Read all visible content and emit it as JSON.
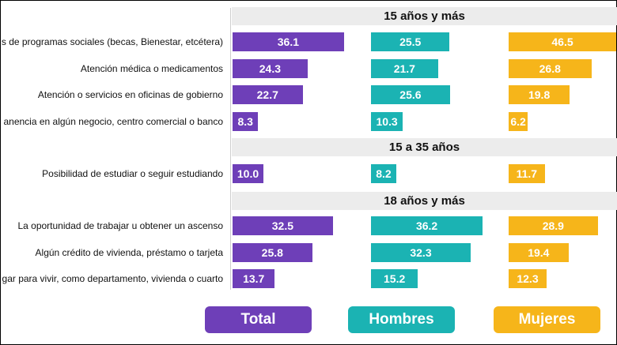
{
  "colors": {
    "total": "#6e3fb8",
    "hombres": "#1bb3b3",
    "mujeres": "#f6b51a"
  },
  "legend": {
    "total": "Total",
    "hombres": "Hombres",
    "mujeres": "Mujeres"
  },
  "chart_data": {
    "type": "bar",
    "orientation": "horizontal",
    "series_names": [
      "Total",
      "Hombres",
      "Mujeres"
    ],
    "groups": [
      {
        "title": "15 años y más",
        "rows": [
          {
            "label": "s de programas sociales (becas, Bienestar, etcétera)",
            "total": 36.1,
            "hombres": 25.5,
            "mujeres": 46.5,
            "total_label": "36.1",
            "hombres_label": "25.5",
            "mujeres_label": "46.5"
          },
          {
            "label": "Atención médica o medicamentos",
            "total": 24.3,
            "hombres": 21.7,
            "mujeres": 26.8,
            "total_label": "24.3",
            "hombres_label": "21.7",
            "mujeres_label": "26.8"
          },
          {
            "label": "Atención o servicios en oficinas de gobierno",
            "total": 22.7,
            "hombres": 25.6,
            "mujeres": 19.8,
            "total_label": "22.7",
            "hombres_label": "25.6",
            "mujeres_label": "19.8"
          },
          {
            "label": "anencia en algún negocio, centro comercial o banco",
            "total": 8.3,
            "hombres": 10.3,
            "mujeres": 6.2,
            "total_label": "8.3",
            "hombres_label": "10.3",
            "mujeres_label": "6.2"
          }
        ]
      },
      {
        "title": "15 a 35 años",
        "rows": [
          {
            "label": "Posibilidad de estudiar o seguir estudiando",
            "total": 10.0,
            "hombres": 8.2,
            "mujeres": 11.7,
            "total_label": "10.0",
            "hombres_label": "8.2",
            "mujeres_label": "11.7"
          }
        ]
      },
      {
        "title": "18 años y más",
        "rows": [
          {
            "label": "La oportunidad de trabajar u obtener un ascenso",
            "total": 32.5,
            "hombres": 36.2,
            "mujeres": 28.9,
            "total_label": "32.5",
            "hombres_label": "36.2",
            "mujeres_label": "28.9"
          },
          {
            "label": "Algún crédito de vivienda, préstamo o tarjeta",
            "total": 25.8,
            "hombres": 32.3,
            "mujeres": 19.4,
            "total_label": "25.8",
            "hombres_label": "32.3",
            "mujeres_label": "19.4"
          },
          {
            "label": "gar para vivir, como departamento, vivienda o cuarto",
            "total": 13.7,
            "hombres": 15.2,
            "mujeres": 12.3,
            "total_label": "13.7",
            "hombres_label": "15.2",
            "mujeres_label": "12.3"
          }
        ]
      }
    ]
  }
}
